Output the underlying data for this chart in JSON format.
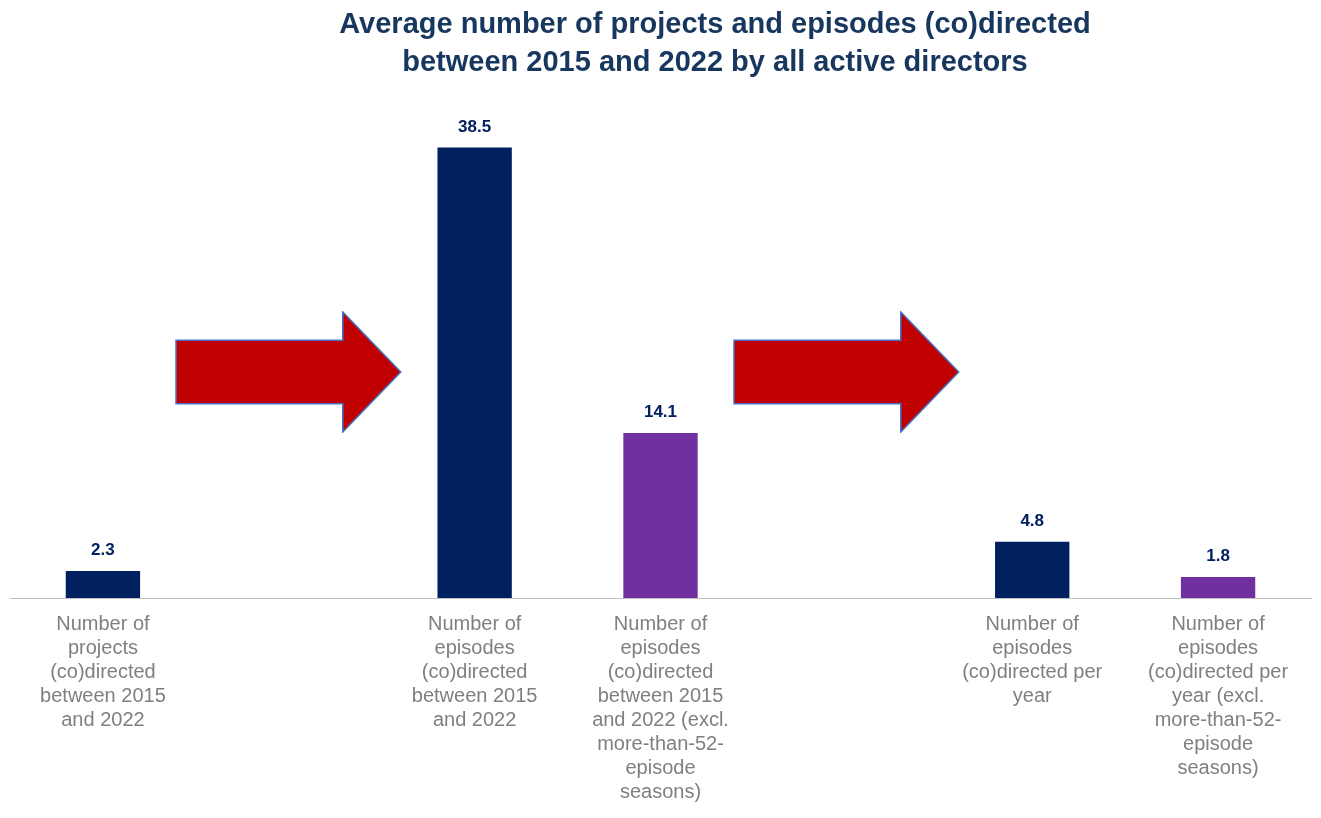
{
  "chart_data": {
    "type": "bar",
    "title": "Average number of projects and episodes (co)directed between 2015 and 2022 by all active directors",
    "categories": [
      "Number of projects (co)directed between 2015 and 2022",
      null,
      "Number of episodes (co)directed between 2015 and 2022",
      "Number of episodes (co)directed between 2015 and 2022 (excl. more-than-52-episode seasons)",
      null,
      "Number of episodes (co)directed per year",
      "Number of episodes (co)directed per year (excl. more-than-52-episode seasons)"
    ],
    "values": [
      2.3,
      null,
      38.5,
      14.1,
      null,
      4.8,
      1.8
    ],
    "colors": [
      "#002060",
      null,
      "#002060",
      "#7030a0",
      null,
      "#002060",
      "#7030a0"
    ],
    "data_labels": true,
    "grid": false,
    "legend": false
  }
}
